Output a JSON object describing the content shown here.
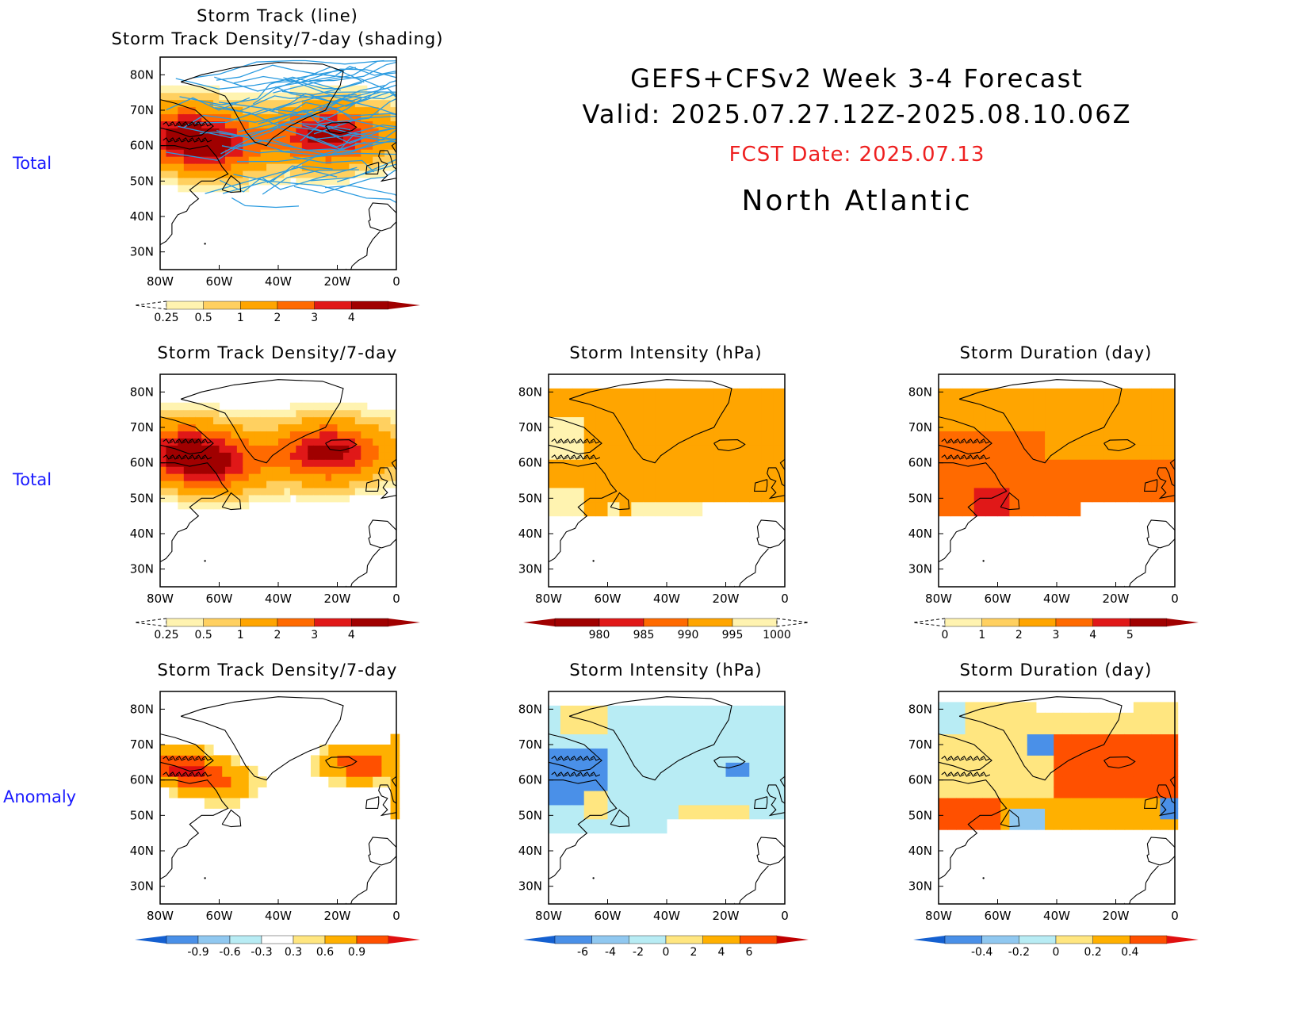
{
  "header": {
    "line1": "GEFS+CFSv2 Week 3-4 Forecast",
    "line2": "Valid: 2025.07.27.12Z-2025.08.10.06Z",
    "fcst": "FCST Date: 2025.07.13",
    "region": "North Atlantic",
    "fcst_color": "#ee2020"
  },
  "row_labels": {
    "row0": "Total",
    "row1": "Total",
    "row2": "Anomaly"
  },
  "axes": {
    "x_ticks": [
      "80W",
      "60W",
      "40W",
      "20W",
      "0"
    ],
    "y_ticks": [
      "80N",
      "70N",
      "60N",
      "50N",
      "40N",
      "30N"
    ]
  },
  "chart_data": [
    {
      "id": "tracks_total",
      "type": "heatmap",
      "title": "Storm Track (line)",
      "subtitle": "Storm Track Density/7-day (shading)",
      "xlim": [
        -80,
        0
      ],
      "ylim": [
        25,
        85
      ],
      "levels": [
        "0.25",
        "0.5",
        "1",
        "2",
        "3",
        "4"
      ],
      "colors": [
        "#fff3b0",
        "#ffd060",
        "#ffa500",
        "#ff6a00",
        "#e01818",
        "#a00000"
      ],
      "overlay": "storm tracks (lines)",
      "track_color": "#2b9be0",
      "centers": [
        {
          "lon": -72,
          "lat": 63,
          "peak": 3.5
        },
        {
          "lon": -23,
          "lat": 63,
          "peak": 4
        },
        {
          "lon": -60,
          "lat": 59,
          "peak": 2.5
        }
      ]
    },
    {
      "id": "density_total",
      "type": "heatmap",
      "title": "Storm Track Density/7-day",
      "xlim": [
        -80,
        0
      ],
      "ylim": [
        25,
        85
      ],
      "levels": [
        "0.25",
        "0.5",
        "1",
        "2",
        "3",
        "4"
      ],
      "colors": [
        "#fff3b0",
        "#ffd060",
        "#ffa500",
        "#ff6a00",
        "#e01818",
        "#a00000"
      ],
      "centers": [
        {
          "lon": -72,
          "lat": 63,
          "peak": 3.5
        },
        {
          "lon": -23,
          "lat": 63,
          "peak": 4
        },
        {
          "lon": -60,
          "lat": 59,
          "peak": 2.5
        }
      ]
    },
    {
      "id": "intensity_total",
      "type": "heatmap",
      "title": "Storm Intensity (hPa)",
      "xlim": [
        -80,
        0
      ],
      "ylim": [
        25,
        85
      ],
      "levels": [
        "980",
        "985",
        "990",
        "995",
        "1000"
      ],
      "colors": [
        "#a00000",
        "#e01818",
        "#ff6a00",
        "#ffa500",
        "#fff3b0"
      ],
      "dominant_value": 993
    },
    {
      "id": "duration_total",
      "type": "heatmap",
      "title": "Storm Duration (day)",
      "xlim": [
        -80,
        0
      ],
      "ylim": [
        25,
        85
      ],
      "levels": [
        "0",
        "1",
        "2",
        "3",
        "4",
        "5"
      ],
      "colors": [
        "#fff3b0",
        "#ffd060",
        "#ffa500",
        "#ff6a00",
        "#e01818",
        "#a00000"
      ],
      "dominant_value": 3.5
    },
    {
      "id": "density_anomaly",
      "type": "heatmap",
      "title": "Storm Track Density/7-day",
      "xlim": [
        -80,
        0
      ],
      "ylim": [
        25,
        85
      ],
      "levels": [
        "-0.9",
        "-0.6",
        "-0.3",
        "0.3",
        "0.6",
        "0.9"
      ],
      "colors": [
        "#1560d0",
        "#4a90e8",
        "#90c8f0",
        "#b8ecf4",
        "#ffffff",
        "#ffe680",
        "#ffb000",
        "#ff5000",
        "#e01010"
      ]
    },
    {
      "id": "intensity_anomaly",
      "type": "heatmap",
      "title": "Storm Intensity (hPa)",
      "xlim": [
        -80,
        0
      ],
      "ylim": [
        25,
        85
      ],
      "levels": [
        "-6",
        "-4",
        "-2",
        "0",
        "2",
        "4",
        "6"
      ],
      "colors": [
        "#1560d0",
        "#4a90e8",
        "#90c8f0",
        "#b8ecf4",
        "#ffe680",
        "#ffb000",
        "#ff5000",
        "#c00000"
      ]
    },
    {
      "id": "duration_anomaly",
      "type": "heatmap",
      "title": "Storm Duration (day)",
      "xlim": [
        -80,
        0
      ],
      "ylim": [
        25,
        85
      ],
      "levels": [
        "-0.4",
        "-0.2",
        "0",
        "0.2",
        "0.4"
      ],
      "colors": [
        "#1560d0",
        "#4a90e8",
        "#90c8f0",
        "#b8ecf4",
        "#ffe680",
        "#ffb000",
        "#ff5000",
        "#e01010"
      ]
    }
  ]
}
